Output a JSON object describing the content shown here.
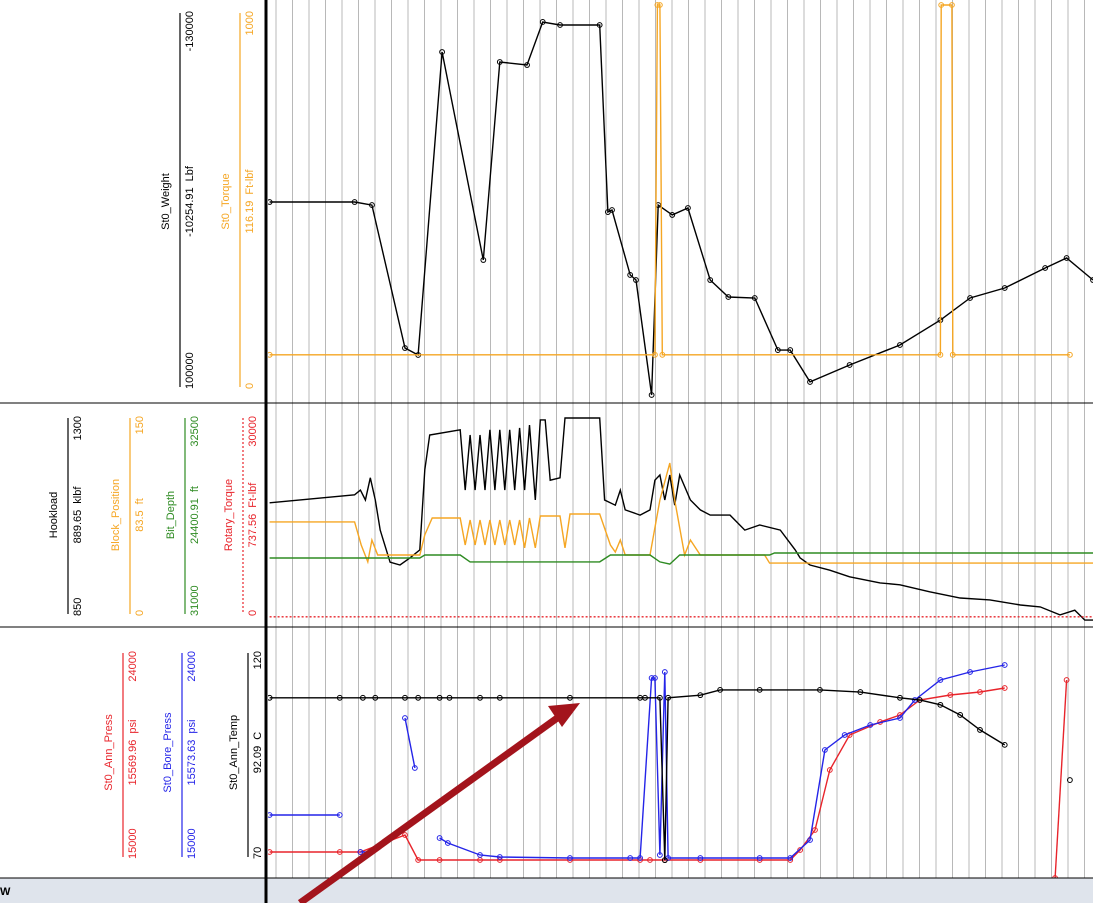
{
  "footer_text": "W",
  "chart_data": [
    {
      "type": "line",
      "xlim": [
        0,
        100
      ],
      "markers": true,
      "series": [
        {
          "name": "St0_Weight",
          "reading": -10254.91,
          "unit": "Lbf",
          "color": "#000000",
          "ylim": [
            100000,
            -130000
          ],
          "x": [
            0.2,
            10.5,
            12.6,
            16.6,
            18.2,
            21.1,
            26.1,
            28.1,
            31.4,
            33.3,
            35.4,
            40.2,
            41.2,
            41.7,
            43.9,
            44.6,
            46.5,
            47.3,
            49.0,
            50.9,
            53.6,
            55.8,
            59.0,
            61.8,
            63.3,
            65.7,
            70.5,
            76.6,
            81.5,
            85.1,
            89.3,
            94.2,
            96.8,
            100
          ],
          "values": [
            -13800,
            -13800,
            -12000,
            72300,
            76400,
            -102300,
            20400,
            -96400,
            -94600,
            -120000,
            -118200,
            -118200,
            -7900,
            -9100,
            29200,
            32200,
            100000,
            -12000,
            -6200,
            -10300,
            32200,
            42200,
            42800,
            73500,
            73500,
            92300,
            82300,
            70500,
            55800,
            42800,
            36900,
            25100,
            19200,
            32200
          ]
        },
        {
          "name": "St0_Torque",
          "reading": 116.19,
          "unit": "Ft-lbf",
          "color": "#f5a623",
          "ylim": [
            0,
            1000
          ],
          "x": [
            0.2,
            46.9,
            47.2,
            47.5,
            47.8,
            81.5,
            81.6,
            82.9,
            83.0,
            97.2
          ],
          "values": [
            103,
            103,
            1000,
            1000,
            103,
            103,
            1000,
            1000,
            103,
            103
          ]
        }
      ]
    },
    {
      "type": "line",
      "xlim": [
        0,
        100
      ],
      "markers": false,
      "series": [
        {
          "name": "Hookload",
          "reading": 889.65,
          "unit": "klbf",
          "color": "#000000",
          "ylim": [
            850,
            1300
          ],
          "x": [
            0.2,
            10.5,
            11.2,
            11.8,
            12.4,
            13.0,
            13.6,
            14.8,
            16.0,
            17.2,
            18.4,
            19.0,
            19.6,
            23.3,
            23.9,
            24.5,
            25.1,
            25.7,
            26.3,
            26.9,
            27.5,
            28.1,
            28.7,
            29.3,
            29.9,
            30.5,
            31.1,
            31.7,
            32.4,
            33.0,
            33.6,
            34.2,
            35.4,
            36.0,
            40.2,
            40.8,
            42.1,
            42.7,
            43.3,
            45.1,
            46.3,
            46.9,
            47.5,
            48.1,
            48.7,
            49.3,
            49.9,
            51.2,
            52.4,
            53.6,
            56.0,
            57.8,
            59.6,
            62.1,
            63.9,
            64.5,
            65.7,
            68.1,
            70.5,
            74.2,
            76.6,
            80.2,
            83.9,
            87.5,
            91.2,
            93.6,
            96.0,
            97.8,
            99.0,
            100
          ],
          "values": [
            1103,
            1120,
            1130,
            1109,
            1156,
            1109,
            1045,
            977,
            971,
            986,
            1003,
            1173,
            1247,
            1258,
            1130,
            1247,
            1130,
            1247,
            1130,
            1258,
            1130,
            1258,
            1130,
            1258,
            1130,
            1262,
            1130,
            1268,
            1109,
            1279,
            1279,
            1151,
            1156,
            1283,
            1283,
            1109,
            1098,
            1130,
            1088,
            1077,
            1088,
            1151,
            1162,
            1109,
            1162,
            1098,
            1162,
            1109,
            1088,
            1077,
            1077,
            1045,
            1056,
            1045,
            1003,
            986,
            971,
            960,
            946,
            933,
            929,
            914,
            901,
            897,
            886,
            882,
            865,
            875,
            854,
            854
          ]
        },
        {
          "name": "Block_Position",
          "reading": 83.5,
          "unit": "ft",
          "color": "#f5a623",
          "ylim": [
            0,
            150
          ],
          "x": [
            0.2,
            10.5,
            11.3,
            12.1,
            12.6,
            13.3,
            18.4,
            19.0,
            19.9,
            23.3,
            23.9,
            24.5,
            25.1,
            25.7,
            26.3,
            26.9,
            27.5,
            28.1,
            28.7,
            29.3,
            29.9,
            30.5,
            31.1,
            31.7,
            32.4,
            33.0,
            35.4,
            36.0,
            36.6,
            40.2,
            41.5,
            42.1,
            42.7,
            43.3,
            46.3,
            47.5,
            48.7,
            49.3,
            50.5,
            51.2,
            52.4,
            60.2,
            60.8,
            100
          ],
          "values": [
            70.8,
            70.8,
            54.5,
            42.5,
            58,
            47.4,
            47.4,
            61.6,
            73.6,
            73.6,
            54.5,
            72.2,
            54.5,
            72.2,
            54.5,
            72.2,
            54.5,
            72.2,
            54.5,
            72.2,
            54.5,
            72.2,
            52.4,
            73.6,
            52.4,
            75,
            75,
            52.4,
            76.4,
            76.4,
            54.5,
            49.5,
            58,
            47.4,
            47.4,
            86.3,
            112.5,
            86.3,
            47.4,
            58,
            47.4,
            47.4,
            41.7,
            41.7
          ]
        },
        {
          "name": "Bit_Depth",
          "reading": 24400.91,
          "unit": "ft",
          "color": "#2e8b22",
          "ylim": [
            31000,
            32500
          ],
          "x": [
            0.2,
            18.4,
            19.0,
            23.3,
            24.5,
            40.2,
            41.5,
            46.3,
            47.5,
            48.7,
            49.9,
            60.8,
            61.4,
            100
          ],
          "values": [
            31453,
            31453,
            31474,
            31474,
            31425,
            31425,
            31474,
            31474,
            31425,
            31410,
            31474,
            31474,
            31488,
            31488
          ]
        },
        {
          "name": "Rotary_Torque",
          "reading": 737.56,
          "unit": "Ft-lbf",
          "color": "#e8242b",
          "line_style": "dotted",
          "ylim": [
            0,
            30000
          ],
          "x": [
            0.2,
            100
          ],
          "values": [
            738,
            738
          ]
        }
      ]
    },
    {
      "type": "line",
      "xlim": [
        0,
        100
      ],
      "markers": true,
      "series": [
        {
          "name": "St0_Ann_Press",
          "reading": 15569.96,
          "unit": "psi",
          "color": "#e8242b",
          "ylim": [
            15000,
            24000
          ],
          "x": [
            0.2,
            8.7,
            11.2,
            16.6,
            18.2,
            20.8,
            25.7,
            28.1,
            36.6,
            45.1,
            46.3,
            48.1,
            52.4,
            59.6,
            63.3,
            64.5,
            66.3,
            68.1,
            70.5,
            74.2,
            76.6,
            79.0,
            82.7,
            86.3,
            89.3,
            92.0,
            95.4,
            96.8
          ],
          "values": [
            15532,
            15532,
            15532,
            16227,
            15205,
            15205,
            15205,
            15205,
            15205,
            15205,
            15205,
            15205,
            15205,
            15205,
            15205,
            15614,
            16432,
            18886,
            20318,
            20850,
            21136,
            21750,
            21955,
            22077,
            22241,
            null,
            14468,
            22568
          ]
        },
        {
          "name": "St0_Bore_Press",
          "reading": 15573.63,
          "unit": "psi",
          "color": "#2424e8",
          "ylim": [
            15000,
            24000
          ],
          "x": [
            0.2,
            8.7,
            10.0,
            11.2,
            12.4,
            14.5,
            16.6,
            17.8,
            19.5,
            20.8,
            21.8,
            25.7,
            28.1,
            36.6,
            43.9,
            45.1,
            46.5,
            46.9,
            47.5,
            48.1,
            48.5,
            52.4,
            59.6,
            63.3,
            65.7,
            67.5,
            69.9,
            73.0,
            76.6,
            78.4,
            81.5,
            85.1,
            89.3
          ],
          "values": [
            17045,
            17045,
            null,
            15532,
            15532,
            null,
            21014,
            18968,
            null,
            16105,
            15900,
            15409,
            15327,
            15286,
            15286,
            15286,
            22650,
            22650,
            15409,
            22895,
            15286,
            15286,
            15286,
            15286,
            16023,
            19705,
            20318,
            20727,
            21014,
            21750,
            22568,
            22895,
            23182
          ]
        },
        {
          "name": "St0_Ann_Temp",
          "reading": 92.09,
          "unit": "C",
          "color": "#000000",
          "ylim": [
            70,
            120
          ],
          "x": [
            0.2,
            8.7,
            11.5,
            13.0,
            16.6,
            18.2,
            20.8,
            22.0,
            25.7,
            28.1,
            36.6,
            45.1,
            45.7,
            47.5,
            48.1,
            48.5,
            52.4,
            54.8,
            59.6,
            66.9,
            71.8,
            76.6,
            79.0,
            81.5,
            83.9,
            86.3,
            89.3,
            93.0,
            97.2
          ],
          "values": [
            108,
            108,
            108,
            108,
            108,
            108,
            108,
            108,
            108,
            108,
            108,
            108,
            108,
            108,
            71.1,
            108,
            108.6,
            109.8,
            109.8,
            109.8,
            109.3,
            108,
            107.5,
            106.4,
            104.1,
            100.7,
            97.3,
            null,
            89.3
          ]
        }
      ]
    }
  ]
}
